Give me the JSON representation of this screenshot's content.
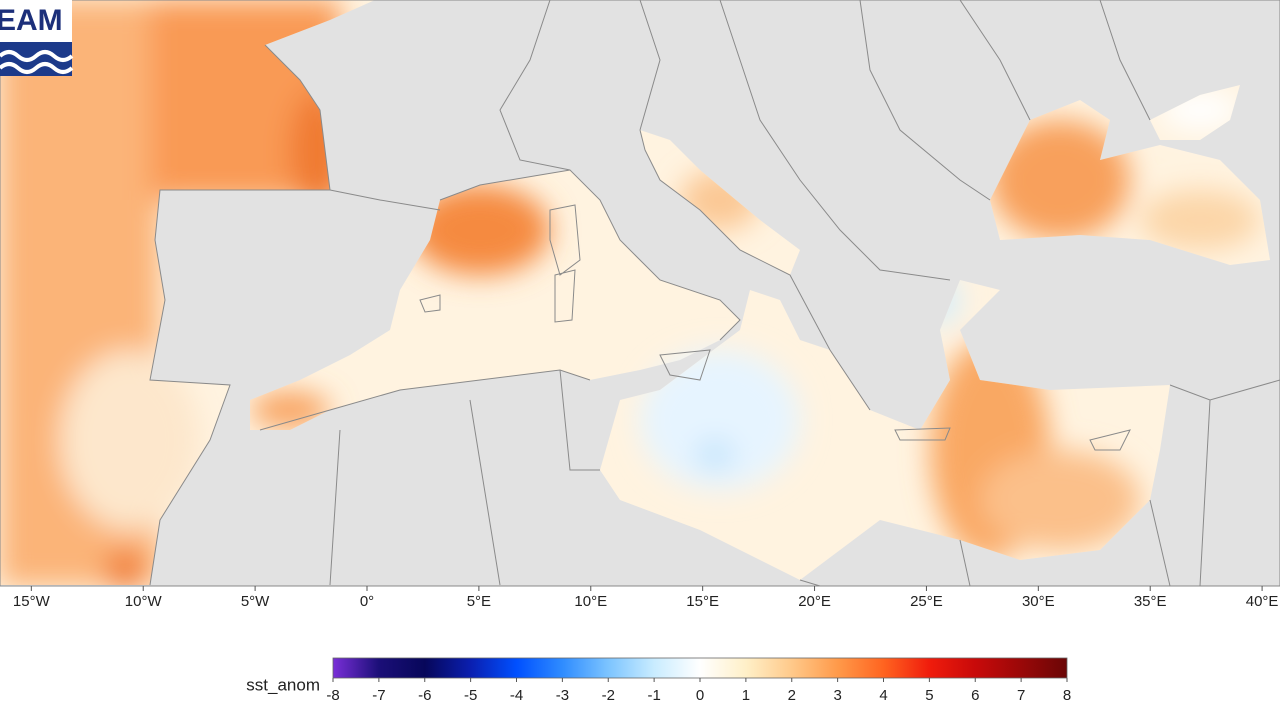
{
  "logo": {
    "text": "EAM"
  },
  "map": {
    "xlim": [
      -16.4,
      40.8
    ],
    "longitude_ticks": [
      {
        "value": -15,
        "label": "15°W"
      },
      {
        "value": -10,
        "label": "10°W"
      },
      {
        "value": -5,
        "label": "5°W"
      },
      {
        "value": 0,
        "label": "0°"
      },
      {
        "value": 5,
        "label": "5°E"
      },
      {
        "value": 10,
        "label": "10°E"
      },
      {
        "value": 15,
        "label": "15°E"
      },
      {
        "value": 20,
        "label": "20°E"
      },
      {
        "value": 25,
        "label": "25°E"
      },
      {
        "value": 30,
        "label": "30°E"
      },
      {
        "value": 35,
        "label": "35°E"
      },
      {
        "value": 40,
        "label": "40°E"
      }
    ]
  },
  "colorbar": {
    "label": "sst_anom",
    "range": [
      -8,
      8
    ],
    "ticks": [
      -8,
      -7,
      -6,
      -5,
      -4,
      -3,
      -2,
      -1,
      0,
      1,
      2,
      3,
      4,
      5,
      6,
      7,
      8
    ],
    "colors": [
      "#7a2fd8",
      "#1b0f78",
      "#07075a",
      "#0a1fb0",
      "#0050ff",
      "#2f8cff",
      "#7cc4ff",
      "#c9ecff",
      "#ffffff",
      "#fff0c8",
      "#ffc98a",
      "#ff9a4a",
      "#ff6420",
      "#f01c0c",
      "#c80a0a",
      "#9a0808",
      "#6a0606"
    ]
  }
}
